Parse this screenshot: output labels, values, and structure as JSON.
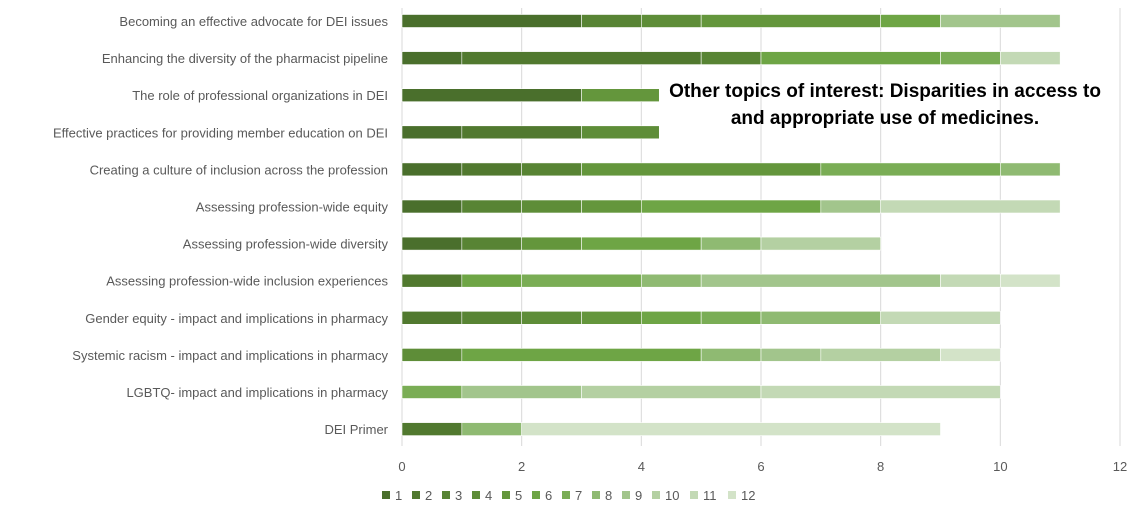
{
  "chart_data": {
    "type": "bar",
    "orientation": "horizontal",
    "stacked": true,
    "categories": [
      "Becoming an effective advocate for DEI issues",
      "Enhancing the diversity of the pharmacist pipeline",
      "The role of professional organizations in DEI",
      "Effective practices for providing member education on DEI",
      "Creating a culture of inclusion across the profession",
      "Assessing profession-wide equity",
      "Assessing profession-wide diversity",
      "Assessing profession-wide inclusion experiences",
      "Gender equity - impact and implications in pharmacy",
      "Systemic racism - impact and implications in pharmacy",
      "LGBTQ- impact and implications in pharmacy",
      "DEI Primer"
    ],
    "series": [
      {
        "name": "1",
        "color": "#4a6f2c",
        "values": [
          3,
          1,
          3,
          1,
          1,
          1,
          1,
          0,
          0,
          0,
          0,
          0
        ]
      },
      {
        "name": "2",
        "color": "#51792f",
        "values": [
          0,
          4,
          0,
          2,
          1,
          0,
          0,
          1,
          1,
          0,
          0,
          1
        ]
      },
      {
        "name": "3",
        "color": "#588434",
        "values": [
          1,
          1,
          0,
          0,
          1,
          1,
          1,
          0,
          1,
          0,
          0,
          0
        ]
      },
      {
        "name": "4",
        "color": "#5e8d38",
        "values": [
          1,
          0,
          0,
          1.3,
          0,
          1,
          0,
          0,
          1,
          1,
          0,
          0
        ]
      },
      {
        "name": "5",
        "color": "#64963c",
        "values": [
          3,
          0,
          1.3,
          0,
          4,
          1,
          1,
          0,
          1,
          0,
          0,
          0
        ]
      },
      {
        "name": "6",
        "color": "#6ea545",
        "values": [
          1,
          3,
          0,
          0,
          0,
          3,
          2,
          1,
          1,
          4,
          0,
          0
        ]
      },
      {
        "name": "7",
        "color": "#7aad55",
        "values": [
          0,
          1,
          0,
          0,
          3,
          0,
          0,
          2,
          1,
          0,
          1,
          0
        ]
      },
      {
        "name": "8",
        "color": "#8fba72",
        "values": [
          0,
          0,
          0,
          0,
          1,
          0,
          1,
          1,
          2,
          1,
          0,
          1
        ]
      },
      {
        "name": "9",
        "color": "#a2c58c",
        "values": [
          2,
          0,
          0,
          0,
          0,
          1,
          0,
          4,
          0,
          1,
          2,
          0
        ]
      },
      {
        "name": "10",
        "color": "#b4d0a2",
        "values": [
          0,
          0,
          0,
          0,
          0,
          0,
          2,
          0,
          0,
          2,
          3,
          0
        ]
      },
      {
        "name": "11",
        "color": "#c3d9b5",
        "values": [
          0,
          1,
          0,
          0,
          0,
          3,
          0,
          1,
          2,
          0,
          4,
          0
        ]
      },
      {
        "name": "12",
        "color": "#d3e3c8",
        "values": [
          0,
          0,
          0,
          0,
          0,
          0,
          0,
          1,
          0,
          1,
          0,
          7
        ]
      }
    ],
    "xlim": [
      0,
      12
    ],
    "xticks": [
      "0",
      "2",
      "4",
      "6",
      "8",
      "10",
      "12"
    ],
    "grid": true,
    "legend_position": "bottom",
    "annotation": "Other topics of interest: Disparities in access to and appropriate use of medicines."
  }
}
